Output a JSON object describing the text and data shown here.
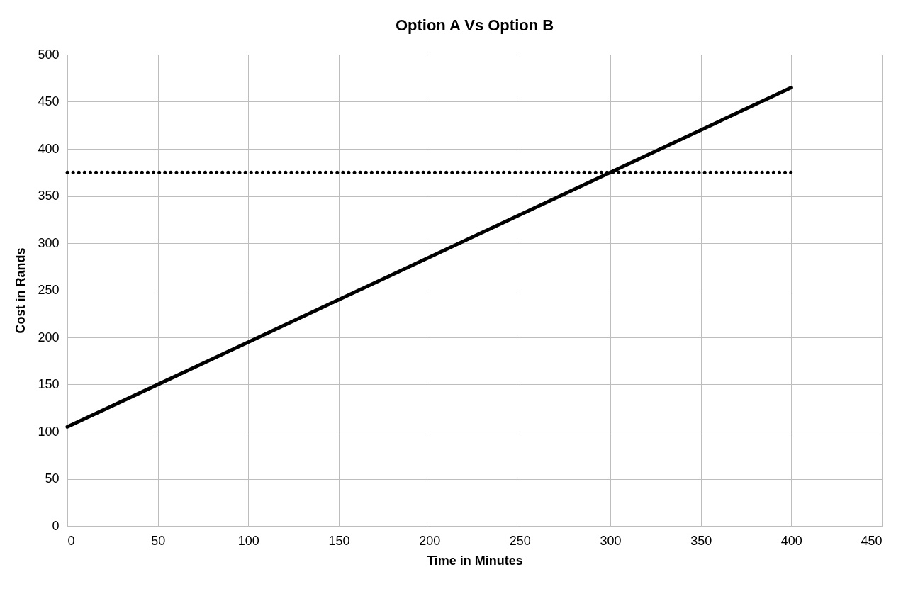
{
  "chart_data": {
    "type": "line",
    "title": "Option A Vs Option B",
    "xlabel": "Time in Minutes",
    "ylabel": "Cost in Rands",
    "x": [
      0,
      400
    ],
    "series": [
      {
        "color": "#000000",
        "values": [
          105,
          465
        ],
        "line_style": "solid"
      },
      {
        "color": "#000000",
        "values": [
          375,
          375
        ],
        "line_style": "dotted"
      }
    ],
    "xlim": [
      0,
      450
    ],
    "xticks": [
      0,
      50,
      100,
      150,
      200,
      250,
      300,
      350,
      400,
      450
    ],
    "ylim": [
      0,
      500
    ],
    "yticks": [
      0,
      50,
      100,
      150,
      200,
      250,
      300,
      350,
      400,
      450,
      500
    ],
    "grid": true,
    "marker": "none"
  }
}
